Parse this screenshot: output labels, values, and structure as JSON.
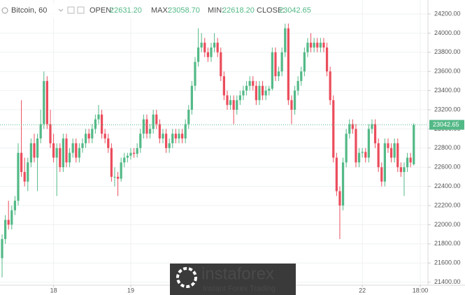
{
  "chart_data": {
    "type": "candlestick",
    "symbol": "Bitcoin, 60",
    "ohlc_names": [
      "OPEN:",
      "MAX:",
      "MIN:",
      "CLOSE:"
    ],
    "ohlc_labels": [
      "22631.20",
      "23058.70",
      "22618.20",
      "23042.65"
    ],
    "up_color": "#53b987",
    "down_color": "#eb4d5c",
    "grid": true,
    "xlim": [
      -0.65,
      132.4
    ],
    "xticks": [
      {
        "value": 16,
        "label": "18"
      },
      {
        "value": 40,
        "label": "19"
      },
      {
        "value": 112,
        "label": "22"
      },
      {
        "value": 130,
        "label": "18:00"
      }
    ],
    "ylim": [
      21368,
      24346
    ],
    "yticks": [
      {
        "value": 21400,
        "label": "21400.00"
      },
      {
        "value": 21600,
        "label": "21600.00"
      },
      {
        "value": 21800,
        "label": "21800.00"
      },
      {
        "value": 22000,
        "label": "22000.00"
      },
      {
        "value": 22200,
        "label": "22200.00"
      },
      {
        "value": 22400,
        "label": "22400.00"
      },
      {
        "value": 22600,
        "label": "22600.00"
      },
      {
        "value": 22800,
        "label": "22800.00"
      },
      {
        "value": 23000,
        "label": "23000.00"
      },
      {
        "value": 23200,
        "label": "23200.00"
      },
      {
        "value": 23400,
        "label": "23400.00"
      },
      {
        "value": 23600,
        "label": "23600.00"
      },
      {
        "value": 23800,
        "label": "23800.00"
      },
      {
        "value": 24000,
        "label": "24000.00"
      },
      {
        "value": 24200,
        "label": "24200.00"
      }
    ],
    "candles": [
      [
        21650,
        21900,
        21450,
        21850
      ],
      [
        21850,
        22100,
        21800,
        22050
      ],
      [
        22050,
        22250,
        21950,
        22000
      ],
      [
        22000,
        22200,
        21950,
        22150
      ],
      [
        22150,
        22300,
        22100,
        22250
      ],
      [
        22250,
        22850,
        22200,
        22750
      ],
      [
        22750,
        23300,
        22500,
        22550
      ],
      [
        22550,
        22700,
        22400,
        22450
      ],
      [
        22450,
        22700,
        22350,
        22650
      ],
      [
        22650,
        22900,
        22600,
        22850
      ],
      [
        22850,
        22950,
        22650,
        22700
      ],
      [
        22700,
        22950,
        22350,
        22900
      ],
      [
        22900,
        23200,
        22850,
        23050
      ],
      [
        23050,
        23600,
        23000,
        23500
      ],
      [
        23500,
        23550,
        23000,
        23050
      ],
      [
        23050,
        23200,
        22800,
        22850
      ],
      [
        22850,
        22950,
        22650,
        22700
      ],
      [
        22700,
        22850,
        22300,
        22800
      ],
      [
        22800,
        22850,
        22550,
        22600
      ],
      [
        22600,
        22950,
        22550,
        22900
      ],
      [
        22900,
        22950,
        22600,
        22650
      ],
      [
        22650,
        22800,
        22600,
        22750
      ],
      [
        22750,
        22900,
        22700,
        22850
      ],
      [
        22850,
        22900,
        22650,
        22700
      ],
      [
        22700,
        22850,
        22650,
        22800
      ],
      [
        22800,
        22900,
        22750,
        22850
      ],
      [
        22850,
        23000,
        22800,
        22950
      ],
      [
        22950,
        23000,
        22850,
        22900
      ],
      [
        22900,
        23050,
        22850,
        23000
      ],
      [
        23000,
        23150,
        22950,
        23100
      ],
      [
        23100,
        23250,
        23050,
        23150
      ],
      [
        23150,
        23200,
        22900,
        22950
      ],
      [
        22950,
        23000,
        22850,
        22900
      ],
      [
        22900,
        22950,
        22750,
        22800
      ],
      [
        22800,
        22850,
        22450,
        22500
      ],
      [
        22500,
        22600,
        22400,
        22500
      ],
      [
        22500,
        22550,
        22300,
        22480
      ],
      [
        22480,
        22700,
        22450,
        22650
      ],
      [
        22650,
        22750,
        22600,
        22700
      ],
      [
        22700,
        22750,
        22650,
        22720
      ],
      [
        22720,
        22800,
        22680,
        22750
      ],
      [
        22750,
        22800,
        22700,
        22740
      ],
      [
        22740,
        22850,
        22700,
        22800
      ],
      [
        22800,
        23000,
        22750,
        22950
      ],
      [
        22950,
        23150,
        22900,
        23100
      ],
      [
        23100,
        23150,
        22900,
        22950
      ],
      [
        22950,
        23050,
        22900,
        23000
      ],
      [
        23000,
        23200,
        22950,
        23150
      ],
      [
        23150,
        23200,
        23000,
        23050
      ],
      [
        23050,
        23100,
        22850,
        22900
      ],
      [
        22900,
        23000,
        22850,
        22950
      ],
      [
        22950,
        23000,
        22750,
        22800
      ],
      [
        22800,
        22900,
        22750,
        22850
      ],
      [
        22850,
        23000,
        22800,
        22950
      ],
      [
        22950,
        23000,
        22850,
        22900
      ],
      [
        22900,
        23000,
        22850,
        22950
      ],
      [
        22950,
        23000,
        22850,
        22900
      ],
      [
        22900,
        23100,
        22850,
        23050
      ],
      [
        23050,
        23250,
        23000,
        23200
      ],
      [
        23200,
        23500,
        23150,
        23450
      ],
      [
        23450,
        23750,
        23400,
        23700
      ],
      [
        23700,
        24050,
        23650,
        23850
      ],
      [
        23850,
        24000,
        23800,
        23900
      ],
      [
        23900,
        23950,
        23750,
        23800
      ],
      [
        23800,
        23850,
        23700,
        23750
      ],
      [
        23750,
        23900,
        23700,
        23850
      ],
      [
        23850,
        24000,
        23800,
        23900
      ],
      [
        23900,
        23950,
        23750,
        23800
      ],
      [
        23800,
        23850,
        23500,
        23550
      ],
      [
        23550,
        23600,
        23300,
        23350
      ],
      [
        23350,
        23400,
        23200,
        23250
      ],
      [
        23250,
        23350,
        23200,
        23300
      ],
      [
        23300,
        23350,
        23050,
        23200
      ],
      [
        23200,
        23350,
        23150,
        23300
      ],
      [
        23300,
        23400,
        23250,
        23350
      ],
      [
        23350,
        23450,
        23300,
        23400
      ],
      [
        23400,
        23500,
        23350,
        23450
      ],
      [
        23450,
        23550,
        23400,
        23500
      ],
      [
        23500,
        23550,
        23400,
        23450
      ],
      [
        23450,
        23500,
        23250,
        23300
      ],
      [
        23300,
        23500,
        23250,
        23450
      ],
      [
        23450,
        23500,
        23300,
        23350
      ],
      [
        23350,
        23450,
        23300,
        23400
      ],
      [
        23400,
        23450,
        23350,
        23420
      ],
      [
        23420,
        23850,
        23400,
        23800
      ],
      [
        23800,
        23850,
        23500,
        23550
      ],
      [
        23550,
        23650,
        23500,
        23600
      ],
      [
        23600,
        23850,
        23550,
        23800
      ],
      [
        23800,
        24100,
        23750,
        24050
      ],
      [
        24050,
        24100,
        23250,
        23300
      ],
      [
        23300,
        23350,
        23050,
        23200
      ],
      [
        23200,
        23450,
        23150,
        23400
      ],
      [
        23400,
        23550,
        23350,
        23500
      ],
      [
        23500,
        23650,
        23450,
        23600
      ],
      [
        23600,
        23850,
        23550,
        23800
      ],
      [
        23800,
        23950,
        23750,
        23900
      ],
      [
        23900,
        24000,
        23800,
        23850
      ],
      [
        23850,
        23950,
        23800,
        23900
      ],
      [
        23900,
        23950,
        23800,
        23850
      ],
      [
        23850,
        23950,
        23800,
        23900
      ],
      [
        23900,
        23950,
        23800,
        23850
      ],
      [
        23850,
        23900,
        23550,
        23600
      ],
      [
        23600,
        23650,
        23250,
        23300
      ],
      [
        23300,
        23350,
        22650,
        22700
      ],
      [
        22700,
        22750,
        22300,
        22350
      ],
      [
        22350,
        22400,
        21850,
        22200
      ],
      [
        22200,
        22700,
        22150,
        22650
      ],
      [
        22650,
        23000,
        22600,
        22950
      ],
      [
        22950,
        23100,
        22900,
        23050
      ],
      [
        23050,
        23100,
        22950,
        23000
      ],
      [
        23000,
        23050,
        22600,
        22650
      ],
      [
        22650,
        22800,
        22600,
        22750
      ],
      [
        22750,
        22800,
        22700,
        22760
      ],
      [
        22760,
        22800,
        22650,
        22700
      ],
      [
        22700,
        23050,
        22650,
        23000
      ],
      [
        23000,
        23100,
        22950,
        23050
      ],
      [
        23050,
        23100,
        22800,
        22850
      ],
      [
        22850,
        22900,
        22550,
        22600
      ],
      [
        22600,
        22650,
        22400,
        22450
      ],
      [
        22450,
        22900,
        22400,
        22850
      ],
      [
        22850,
        22900,
        22750,
        22800
      ],
      [
        22800,
        22850,
        22650,
        22700
      ],
      [
        22700,
        22900,
        22650,
        22850
      ],
      [
        22850,
        22900,
        22550,
        22600
      ],
      [
        22600,
        22650,
        22500,
        22550
      ],
      [
        22550,
        22650,
        22300,
        22600
      ],
      [
        22600,
        22750,
        22550,
        22700
      ],
      [
        22700,
        22750,
        22600,
        22650
      ],
      [
        22631.2,
        23058.7,
        22618.2,
        23042.65
      ]
    ]
  },
  "watermark": {
    "brand": "instaforex",
    "tagline": "Instant Forex Trading"
  }
}
